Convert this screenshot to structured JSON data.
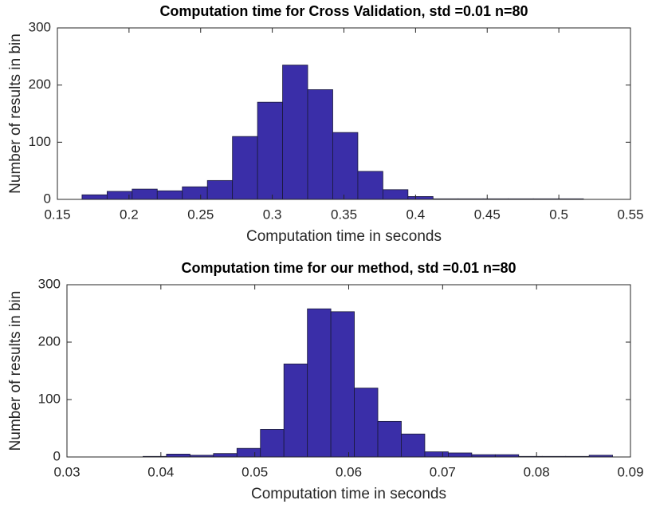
{
  "chart_data": [
    {
      "type": "histogram",
      "title": "Computation time for Cross Validation, std =0.01 n=80",
      "xlabel": "Computation time in seconds",
      "ylabel": "Number of results in bin",
      "bins": [
        0.1672,
        0.1847,
        0.2022,
        0.2197,
        0.2372,
        0.2547,
        0.2722,
        0.2897,
        0.3072,
        0.3247,
        0.3422,
        0.3597,
        0.3772,
        0.3947,
        0.4122,
        0.4297,
        0.4472,
        0.4647,
        0.4822,
        0.4997,
        0.5172
      ],
      "values": [
        8,
        14,
        18,
        15,
        22,
        33,
        110,
        170,
        235,
        192,
        117,
        49,
        17,
        5,
        1,
        1,
        1,
        1,
        1,
        1
      ],
      "color": "#3a2ea8",
      "xlim": [
        0.15,
        0.55
      ],
      "xticks": [
        0.15,
        0.2,
        0.25,
        0.3,
        0.35,
        0.4,
        0.45,
        0.5,
        0.55
      ],
      "ylim": [
        0,
        300
      ],
      "yticks": [
        0,
        100,
        200,
        300
      ]
    },
    {
      "type": "histogram",
      "title": "Computation time for our method, std =0.01 n=80",
      "xlabel": "Computation time in seconds",
      "ylabel": "Number of results in bin",
      "bins": [
        0.0381,
        0.0406,
        0.0431,
        0.0456,
        0.0481,
        0.0506,
        0.0531,
        0.0556,
        0.0581,
        0.0606,
        0.0631,
        0.0656,
        0.0681,
        0.0706,
        0.0731,
        0.0756,
        0.0781,
        0.0806,
        0.0831,
        0.0856,
        0.0881
      ],
      "values": [
        1,
        5,
        3,
        6,
        15,
        48,
        162,
        258,
        253,
        120,
        62,
        40,
        9,
        7,
        4,
        4,
        1,
        1,
        1,
        3
      ],
      "color": "#3a2ea8",
      "xlim": [
        0.03,
        0.09
      ],
      "xticks": [
        0.03,
        0.04,
        0.05,
        0.06,
        0.07,
        0.08,
        0.09
      ],
      "ylim": [
        0,
        300
      ],
      "yticks": [
        0,
        100,
        200,
        300
      ]
    }
  ]
}
